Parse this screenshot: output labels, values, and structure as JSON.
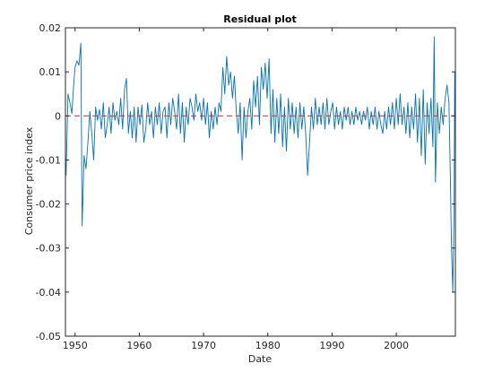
{
  "chart_data": {
    "type": "line",
    "title": "Residual plot",
    "xlabel": "Date",
    "ylabel": "Consumer price index",
    "xlim": [
      1948.5,
      2009.2
    ],
    "ylim": [
      -0.05,
      0.02
    ],
    "grid": false,
    "x_ticks": [
      {
        "value": 1950,
        "label": "1950"
      },
      {
        "value": 1960,
        "label": "1960"
      },
      {
        "value": 1970,
        "label": "1970"
      },
      {
        "value": 1980,
        "label": "1980"
      },
      {
        "value": 1990,
        "label": "1990"
      },
      {
        "value": 2000,
        "label": "2000"
      }
    ],
    "y_ticks": [
      {
        "value": 0.02,
        "label": "0.02"
      },
      {
        "value": 0.01,
        "label": "0.01"
      },
      {
        "value": 0,
        "label": "0"
      },
      {
        "value": -0.01,
        "label": "-0.01"
      },
      {
        "value": -0.02,
        "label": "-0.02"
      },
      {
        "value": -0.03,
        "label": "-0.03"
      },
      {
        "value": -0.04,
        "label": "-0.04"
      },
      {
        "value": -0.05,
        "label": "-0.05"
      }
    ],
    "reference_line": {
      "y": 0,
      "color": "#d62728",
      "style": "dashed"
    },
    "series": [
      {
        "color": "#0072bd",
        "points": [
          [
            1948.6,
            -0.0135
          ],
          [
            1948.9,
            0.005
          ],
          [
            1949.2,
            0.003
          ],
          [
            1949.5,
            0.0005
          ],
          [
            1949.8,
            0.0075
          ],
          [
            1950.0,
            0.011
          ],
          [
            1950.3,
            0.0125
          ],
          [
            1950.6,
            0.0115
          ],
          [
            1950.9,
            0.0165
          ],
          [
            1951.1,
            -0.025
          ],
          [
            1951.4,
            -0.009
          ],
          [
            1951.7,
            -0.012
          ],
          [
            1952.0,
            -0.006
          ],
          [
            1952.3,
            0.001
          ],
          [
            1952.6,
            -0.004
          ],
          [
            1952.9,
            -0.01
          ],
          [
            1953.2,
            0.002
          ],
          [
            1953.5,
            -0.001
          ],
          [
            1953.8,
            0.0015
          ],
          [
            1954.1,
            -0.003
          ],
          [
            1954.4,
            0.003
          ],
          [
            1954.7,
            -0.005
          ],
          [
            1955.0,
            -0.002
          ],
          [
            1955.3,
            0.002
          ],
          [
            1955.6,
            -0.004
          ],
          [
            1955.9,
            0.003
          ],
          [
            1956.2,
            -0.001
          ],
          [
            1956.5,
            0.001
          ],
          [
            1956.8,
            -0.002
          ],
          [
            1957.1,
            0.004
          ],
          [
            1957.4,
            -0.003
          ],
          [
            1957.7,
            0.006
          ],
          [
            1958.0,
            0.0085
          ],
          [
            1958.3,
            -0.004
          ],
          [
            1958.6,
            0.001
          ],
          [
            1958.9,
            -0.005
          ],
          [
            1959.2,
            0.002
          ],
          [
            1959.5,
            -0.006
          ],
          [
            1959.8,
            0.002
          ],
          [
            1960.1,
            -0.002
          ],
          [
            1960.4,
            0.0025
          ],
          [
            1960.7,
            -0.006
          ],
          [
            1961.0,
            -0.003
          ],
          [
            1961.3,
            0.003
          ],
          [
            1961.6,
            -0.002
          ],
          [
            1961.9,
            0.001
          ],
          [
            1962.2,
            -0.005
          ],
          [
            1962.5,
            0.002
          ],
          [
            1962.8,
            -0.002
          ],
          [
            1963.1,
            0.003
          ],
          [
            1963.4,
            -0.004
          ],
          [
            1963.7,
            0.001
          ],
          [
            1964.0,
            0.002
          ],
          [
            1964.3,
            -0.005
          ],
          [
            1964.6,
            0.003
          ],
          [
            1964.9,
            -0.002
          ],
          [
            1965.2,
            0.004
          ],
          [
            1965.5,
            0.001
          ],
          [
            1965.8,
            -0.003
          ],
          [
            1966.1,
            0.005
          ],
          [
            1966.4,
            -0.004
          ],
          [
            1966.7,
            0.003
          ],
          [
            1967.0,
            -0.006
          ],
          [
            1967.3,
            0.002
          ],
          [
            1967.6,
            -0.002
          ],
          [
            1967.9,
            0.004
          ],
          [
            1968.2,
            0.002
          ],
          [
            1968.5,
            -0.001
          ],
          [
            1968.8,
            0.005
          ],
          [
            1969.1,
            0.001
          ],
          [
            1969.4,
            0.003
          ],
          [
            1969.7,
            -0.001
          ],
          [
            1970.0,
            0.004
          ],
          [
            1970.3,
            -0.002
          ],
          [
            1970.6,
            0.003
          ],
          [
            1970.9,
            -0.005
          ],
          [
            1971.2,
            0.001
          ],
          [
            1971.5,
            -0.003
          ],
          [
            1971.8,
            0.002
          ],
          [
            1972.1,
            -0.002
          ],
          [
            1972.4,
            0.003
          ],
          [
            1972.7,
            0.001
          ],
          [
            1973.0,
            0.011
          ],
          [
            1973.3,
            0.005
          ],
          [
            1973.6,
            0.0135
          ],
          [
            1973.9,
            0.007
          ],
          [
            1974.2,
            0.01
          ],
          [
            1974.5,
            0.004
          ],
          [
            1974.8,
            0.009
          ],
          [
            1975.1,
            0.001
          ],
          [
            1975.4,
            -0.004
          ],
          [
            1975.7,
            0.003
          ],
          [
            1976.0,
            -0.01
          ],
          [
            1976.3,
            0.002
          ],
          [
            1976.6,
            -0.005
          ],
          [
            1976.9,
            0.001
          ],
          [
            1977.2,
            0.004
          ],
          [
            1977.5,
            -0.003
          ],
          [
            1977.8,
            0.008
          ],
          [
            1978.1,
            0.002
          ],
          [
            1978.4,
            0.009
          ],
          [
            1978.7,
            -0.002
          ],
          [
            1979.0,
            0.011
          ],
          [
            1979.3,
            0.006
          ],
          [
            1979.6,
            0.012
          ],
          [
            1979.9,
            0.004
          ],
          [
            1980.2,
            0.013
          ],
          [
            1980.5,
            -0.004
          ],
          [
            1980.8,
            0.006
          ],
          [
            1981.1,
            -0.006
          ],
          [
            1981.4,
            0.004
          ],
          [
            1981.7,
            -0.004
          ],
          [
            1982.0,
            0.005
          ],
          [
            1982.3,
            -0.007
          ],
          [
            1982.6,
            0.002
          ],
          [
            1982.9,
            -0.008
          ],
          [
            1983.2,
            0.004
          ],
          [
            1983.5,
            -0.003
          ],
          [
            1983.8,
            0.003
          ],
          [
            1984.1,
            -0.004
          ],
          [
            1984.4,
            0.002
          ],
          [
            1984.7,
            -0.005
          ],
          [
            1985.0,
            0.003
          ],
          [
            1985.3,
            -0.003
          ],
          [
            1985.6,
            0.002
          ],
          [
            1985.9,
            -0.004
          ],
          [
            1986.2,
            -0.0135
          ],
          [
            1986.5,
            -0.006
          ],
          [
            1986.8,
            0.002
          ],
          [
            1987.1,
            -0.003
          ],
          [
            1987.4,
            0.004
          ],
          [
            1987.7,
            -0.002
          ],
          [
            1988.0,
            0.002
          ],
          [
            1988.3,
            -0.002
          ],
          [
            1988.6,
            0.003
          ],
          [
            1988.9,
            -0.003
          ],
          [
            1989.2,
            0.004
          ],
          [
            1989.5,
            -0.002
          ],
          [
            1989.8,
            0.001
          ],
          [
            1990.1,
            0.003
          ],
          [
            1990.4,
            -0.003
          ],
          [
            1990.7,
            0.002
          ],
          [
            1991.0,
            -0.002
          ],
          [
            1991.3,
            0.001
          ],
          [
            1991.6,
            -0.003
          ],
          [
            1991.9,
            0.002
          ],
          [
            1992.2,
            -0.001
          ],
          [
            1992.5,
            0.002
          ],
          [
            1992.8,
            -0.002
          ],
          [
            1993.1,
            0.001
          ],
          [
            1993.4,
            -0.002
          ],
          [
            1993.7,
            0.002
          ],
          [
            1994.0,
            -0.001
          ],
          [
            1994.3,
            0.001
          ],
          [
            1994.6,
            -0.002
          ],
          [
            1994.9,
            0.001
          ],
          [
            1995.2,
            -0.001
          ],
          [
            1995.5,
            0.002
          ],
          [
            1995.8,
            -0.003
          ],
          [
            1996.1,
            0.001
          ],
          [
            1996.4,
            -0.002
          ],
          [
            1996.7,
            0.002
          ],
          [
            1997.0,
            -0.003
          ],
          [
            1997.3,
            0.001
          ],
          [
            1997.6,
            -0.002
          ],
          [
            1997.9,
            -0.004
          ],
          [
            1998.2,
            0.001
          ],
          [
            1998.5,
            -0.003
          ],
          [
            1998.8,
            0.002
          ],
          [
            1999.1,
            -0.002
          ],
          [
            1999.4,
            0.003
          ],
          [
            1999.7,
            -0.003
          ],
          [
            2000.0,
            0.004
          ],
          [
            2000.3,
            -0.002
          ],
          [
            2000.6,
            0.005
          ],
          [
            2000.9,
            -0.002
          ],
          [
            2001.2,
            0.002
          ],
          [
            2001.5,
            -0.004
          ],
          [
            2001.8,
            0.003
          ],
          [
            2002.1,
            -0.005
          ],
          [
            2002.4,
            0.002
          ],
          [
            2002.7,
            -0.003
          ],
          [
            2003.0,
            0.005
          ],
          [
            2003.3,
            -0.006
          ],
          [
            2003.6,
            0.004
          ],
          [
            2003.9,
            -0.009
          ],
          [
            2004.2,
            0.006
          ],
          [
            2004.5,
            -0.011
          ],
          [
            2004.8,
            0.003
          ],
          [
            2005.1,
            -0.004
          ],
          [
            2005.4,
            0.004
          ],
          [
            2005.7,
            -0.007
          ],
          [
            2005.9,
            0.018
          ],
          [
            2006.1,
            -0.015
          ],
          [
            2006.4,
            0.003
          ],
          [
            2006.7,
            -0.004
          ],
          [
            2007.0,
            0.002
          ],
          [
            2007.3,
            -0.002
          ],
          [
            2007.6,
            0.004
          ],
          [
            2007.9,
            0.007
          ],
          [
            2008.2,
            0.003
          ],
          [
            2008.4,
            -0.013
          ],
          [
            2008.6,
            -0.03
          ],
          [
            2008.8,
            -0.04
          ],
          [
            2009.0,
            -0.02
          ],
          [
            2009.1,
            0.01
          ]
        ]
      }
    ]
  }
}
